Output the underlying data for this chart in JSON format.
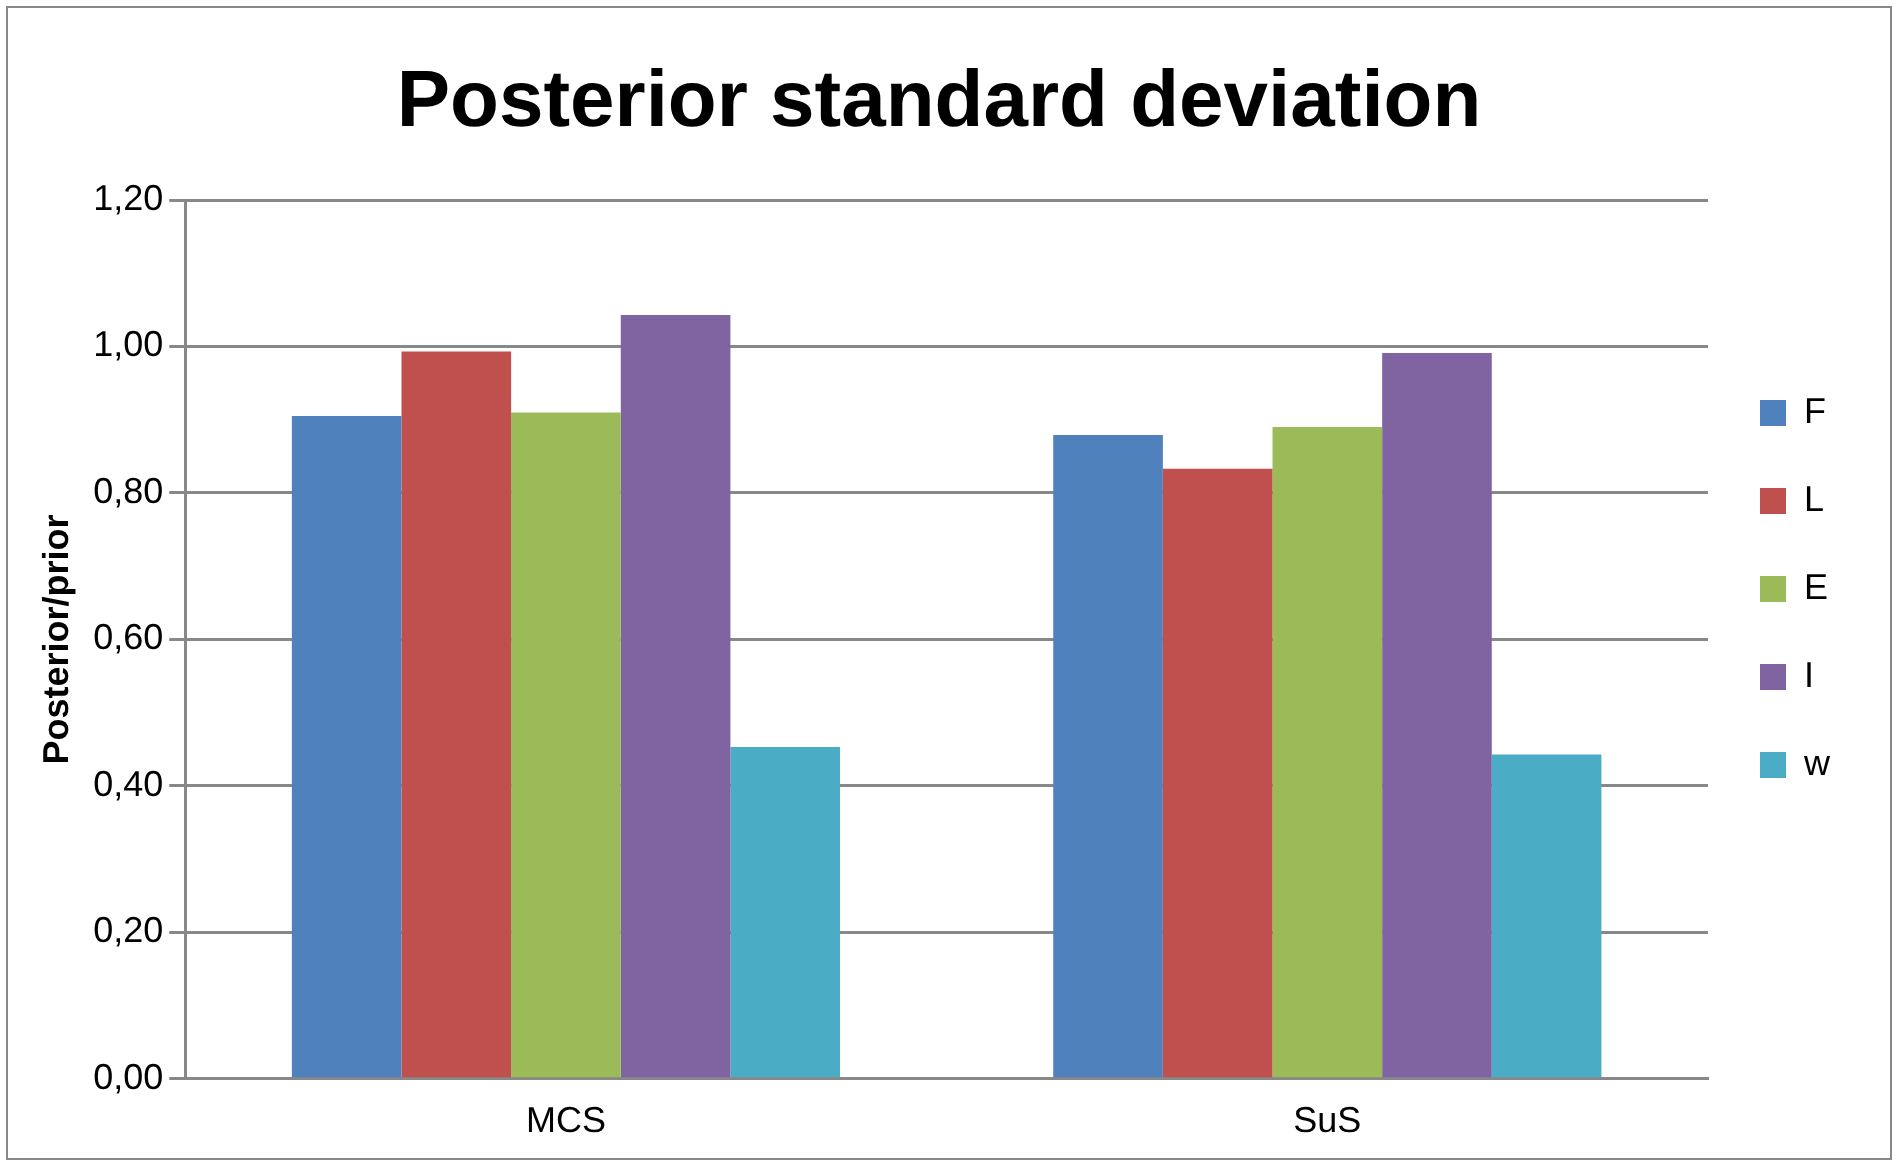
{
  "chart_data": {
    "type": "bar",
    "title": "Posterior standard deviation",
    "ylabel": "Posterior/prior",
    "categories": [
      "MCS",
      "SuS"
    ],
    "series": [
      {
        "name": "F",
        "color": "#4f81bd",
        "values": [
          0.905,
          0.879
        ]
      },
      {
        "name": "L",
        "color": "#c0504d",
        "values": [
          0.993,
          0.833
        ]
      },
      {
        "name": "E",
        "color": "#9bbb59",
        "values": [
          0.91,
          0.89
        ]
      },
      {
        "name": "I",
        "color": "#8064a2",
        "values": [
          1.043,
          0.991
        ]
      },
      {
        "name": "w",
        "color": "#4bacc6",
        "values": [
          0.453,
          0.443
        ]
      }
    ],
    "ylim": [
      0,
      1.2
    ],
    "yticks": [
      {
        "value": 0,
        "label": "0,00"
      },
      {
        "value": 0.2,
        "label": "0,20"
      },
      {
        "value": 0.4,
        "label": "0,40"
      },
      {
        "value": 0.6,
        "label": "0,60"
      },
      {
        "value": 0.8,
        "label": "0,80"
      },
      {
        "value": 1,
        "label": "1,00"
      },
      {
        "value": 1.2,
        "label": "1,20"
      }
    ],
    "grid": "y",
    "legend": "right"
  }
}
